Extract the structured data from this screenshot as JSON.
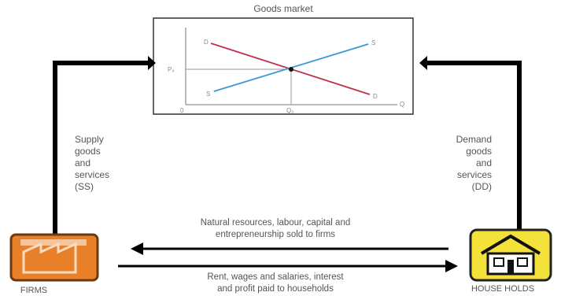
{
  "market": {
    "title": "Goods market",
    "axis_labels": {
      "price_tick": "P₀",
      "quantity_tick": "Q₀",
      "origin": "0",
      "x_axis": "Q",
      "demand_start": "D",
      "demand_end": "D",
      "supply_start": "S",
      "supply_end": "S"
    },
    "colors": {
      "demand": "#c0304a",
      "supply": "#3a9ad0"
    }
  },
  "left_flow": {
    "label": "Supply\ngoods\nand\nservices\n(SS)"
  },
  "right_flow": {
    "label": "Demand\ngoods\nand\nservices\n(DD)"
  },
  "upper_flow": {
    "label": "Natural resources, labour, capital and\nentrepreneurship sold to firms"
  },
  "lower_flow": {
    "label": "Rent, wages and salaries, interest\nand profit paid to households"
  },
  "firms": {
    "label": "FIRMS",
    "icon": "factory-icon",
    "color": "#e8802a"
  },
  "households": {
    "label": "HOUSE HOLDS",
    "icon": "house-icon",
    "color": "#f2e23a"
  }
}
